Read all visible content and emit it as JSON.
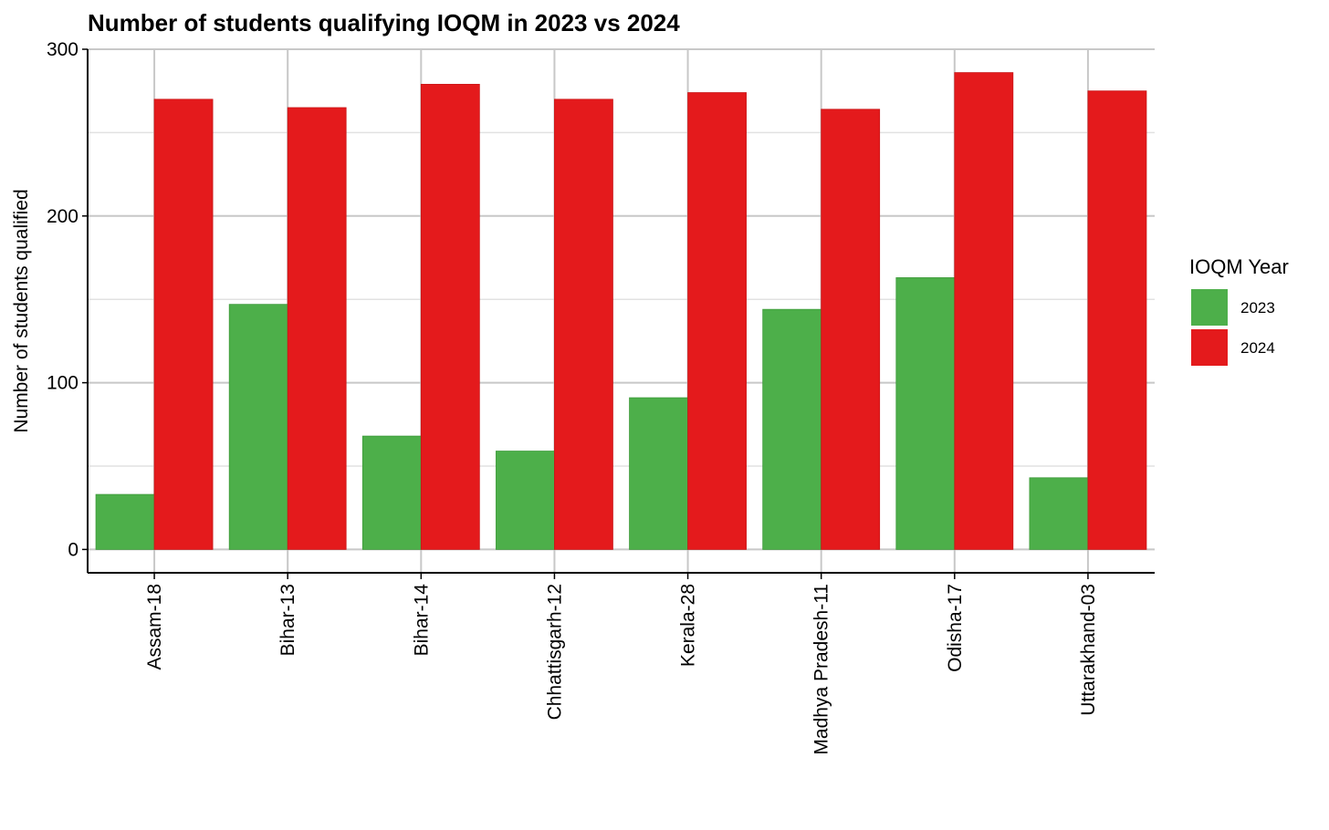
{
  "chart_data": {
    "type": "bar",
    "title": "Number of students qualifying IOQM in 2023 vs 2024",
    "xlabel": "",
    "ylabel": "Number of students qualified",
    "ylim": [
      -14,
      300
    ],
    "yticks": [
      0,
      100,
      200,
      300
    ],
    "grid": true,
    "legend": {
      "title": "IOQM Year",
      "position": "right"
    },
    "categories": [
      "Assam-18",
      "Bihar-13",
      "Bihar-14",
      "Chhattisgarh-12",
      "Kerala-28",
      "Madhya Pradesh-11",
      "Odisha-17",
      "Uttarakhand-03"
    ],
    "series": [
      {
        "name": "2023",
        "color": "#4daf4a",
        "values": [
          33,
          147,
          68,
          59,
          91,
          144,
          163,
          43
        ]
      },
      {
        "name": "2024",
        "color": "#e41a1c",
        "values": [
          270,
          265,
          279,
          270,
          274,
          264,
          286,
          275
        ]
      }
    ]
  }
}
